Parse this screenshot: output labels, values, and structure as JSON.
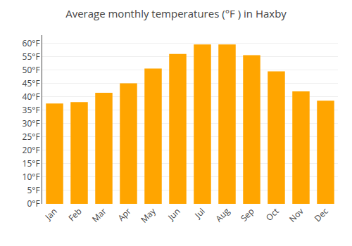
{
  "chart_data": {
    "type": "bar",
    "title": "Average monthly temperatures (°F ) in Haxby",
    "categories": [
      "Jan",
      "Feb",
      "Mar",
      "Apr",
      "May",
      "Jun",
      "Jul",
      "Aug",
      "Sep",
      "Oct",
      "Nov",
      "Dec"
    ],
    "values": [
      37.5,
      38.0,
      41.5,
      45.0,
      50.5,
      56.0,
      59.5,
      59.5,
      55.5,
      49.5,
      42.0,
      38.5
    ],
    "color": "#FFA500",
    "ylim": [
      0,
      63
    ],
    "yticks": [
      {
        "value": 0,
        "label": "0°F"
      },
      {
        "value": 5,
        "label": "5°F"
      },
      {
        "value": 10,
        "label": "10°F"
      },
      {
        "value": 15,
        "label": "15°F"
      },
      {
        "value": 20,
        "label": "20°F"
      },
      {
        "value": 25,
        "label": "25°F"
      },
      {
        "value": 30,
        "label": "30°F"
      },
      {
        "value": 35,
        "label": "35°F"
      },
      {
        "value": 40,
        "label": "40°F"
      },
      {
        "value": 45,
        "label": "45°F"
      },
      {
        "value": 50,
        "label": "50°F"
      },
      {
        "value": 55,
        "label": "55°F"
      },
      {
        "value": 60,
        "label": "60°F"
      }
    ],
    "grid": true
  }
}
